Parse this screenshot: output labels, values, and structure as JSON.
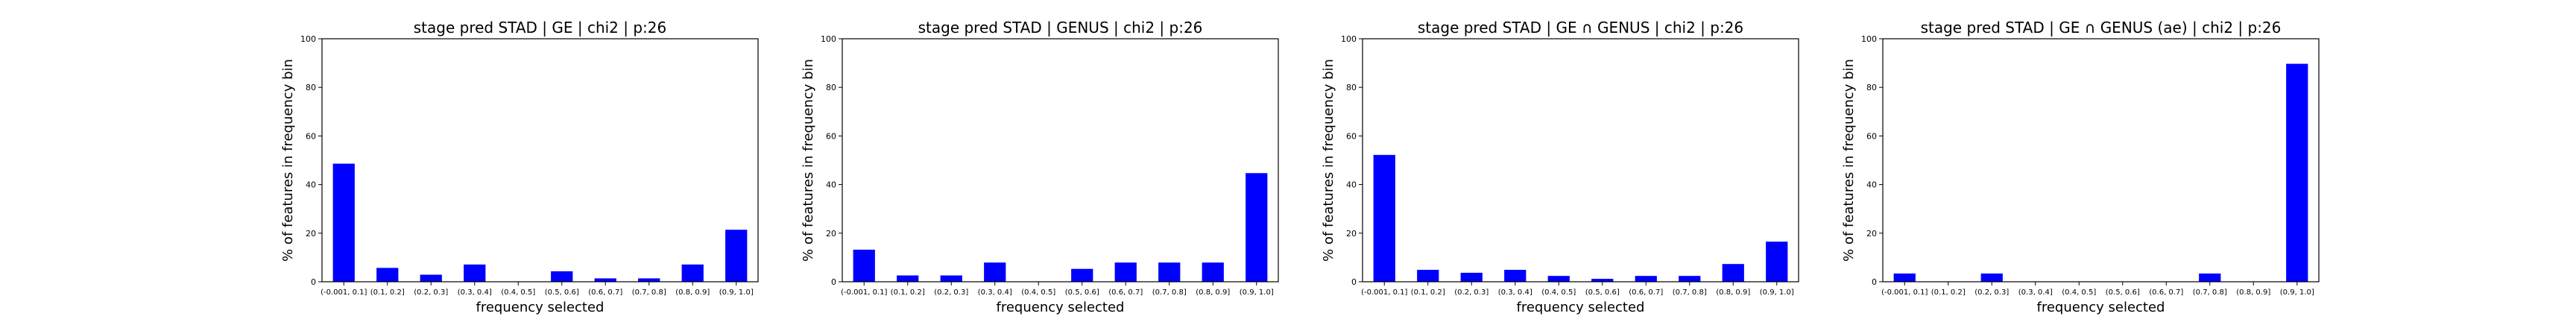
{
  "chart_data": [
    {
      "type": "bar",
      "title": "stage pred STAD | GE | chi2 | p:26",
      "xlabel": "frequency selected",
      "ylabel": "% of features in frequency bin",
      "ylim": [
        0,
        100
      ],
      "yticks": [
        0,
        20,
        40,
        60,
        80,
        100
      ],
      "categories": [
        "(-0.001, 0.1]",
        "(0.1, 0.2]",
        "(0.2, 0.3]",
        "(0.3, 0.4]",
        "(0.4, 0.5]",
        "(0.5, 0.6]",
        "(0.6, 0.7]",
        "(0.7, 0.8]",
        "(0.8, 0.9]",
        "(0.9, 1.0]"
      ],
      "values": [
        48.6,
        5.7,
        2.9,
        7.1,
        0.0,
        4.3,
        1.4,
        1.4,
        7.1,
        21.4
      ],
      "color": "#0000ff",
      "grid": false
    },
    {
      "type": "bar",
      "title": "stage pred STAD | GENUS | chi2 | p:26",
      "xlabel": "frequency selected",
      "ylabel": "% of features in frequency bin",
      "ylim": [
        0,
        100
      ],
      "yticks": [
        0,
        20,
        40,
        60,
        80,
        100
      ],
      "categories": [
        "(-0.001, 0.1]",
        "(0.1, 0.2]",
        "(0.2, 0.3]",
        "(0.3, 0.4]",
        "(0.4, 0.5]",
        "(0.5, 0.6]",
        "(0.6, 0.7]",
        "(0.7, 0.8]",
        "(0.8, 0.9]",
        "(0.9, 1.0]"
      ],
      "values": [
        13.2,
        2.6,
        2.6,
        7.9,
        0.0,
        5.3,
        7.9,
        7.9,
        7.9,
        44.7
      ],
      "color": "#0000ff",
      "grid": false
    },
    {
      "type": "bar",
      "title": "stage pred STAD | GE ∩ GENUS | chi2 | p:26",
      "xlabel": "frequency selected",
      "ylabel": "% of features in frequency bin",
      "ylim": [
        0,
        100
      ],
      "yticks": [
        0,
        20,
        40,
        60,
        80,
        100
      ],
      "categories": [
        "(-0.001, 0.1]",
        "(0.1, 0.2]",
        "(0.2, 0.3]",
        "(0.3, 0.4]",
        "(0.4, 0.5]",
        "(0.5, 0.6]",
        "(0.6, 0.7]",
        "(0.7, 0.8]",
        "(0.8, 0.9]",
        "(0.9, 1.0]"
      ],
      "values": [
        52.2,
        4.9,
        3.7,
        4.9,
        2.4,
        1.2,
        2.4,
        2.4,
        7.3,
        16.5
      ],
      "color": "#0000ff",
      "grid": false
    },
    {
      "type": "bar",
      "title": "stage pred STAD | GE ∩ GENUS (ae) | chi2 | p:26",
      "xlabel": "frequency selected",
      "ylabel": "% of features in frequency bin",
      "ylim": [
        0,
        100
      ],
      "yticks": [
        0,
        20,
        40,
        60,
        80,
        100
      ],
      "categories": [
        "(-0.001, 0.1]",
        "(0.1, 0.2]",
        "(0.2, 0.3]",
        "(0.3, 0.4]",
        "(0.4, 0.5]",
        "(0.5, 0.6]",
        "(0.6, 0.7]",
        "(0.7, 0.8]",
        "(0.8, 0.9]",
        "(0.9, 1.0]"
      ],
      "values": [
        3.4,
        0.0,
        3.4,
        0.0,
        0.0,
        0.0,
        0.0,
        3.4,
        0.0,
        89.7
      ],
      "color": "#0000ff",
      "grid": false
    }
  ]
}
